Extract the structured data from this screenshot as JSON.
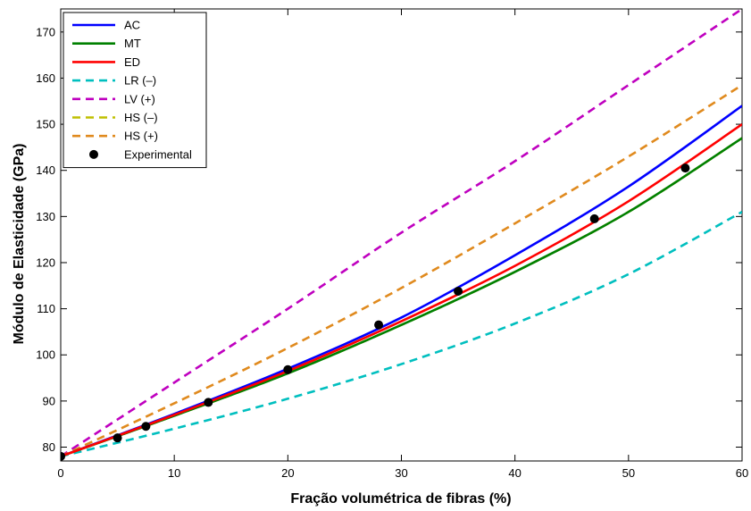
{
  "chart_data": {
    "type": "line",
    "title": "",
    "xlabel": "Fração volumétrica de fibras (%)",
    "ylabel": "Módulo de Elasticidade (GPa)",
    "xlim": [
      0,
      60
    ],
    "ylim": [
      77,
      175
    ],
    "xticks": [
      0,
      10,
      20,
      30,
      40,
      50,
      60
    ],
    "yticks": [
      80,
      90,
      100,
      110,
      120,
      130,
      140,
      150,
      160,
      170
    ],
    "grid": false,
    "legend_position": "top-left",
    "x": [
      0,
      10,
      20,
      30,
      40,
      50,
      60
    ],
    "series": [
      {
        "name": "AC",
        "color": "#0000ff",
        "style": "solid",
        "values": [
          78,
          87.2,
          97.0,
          108.1,
          121.6,
          136.5,
          154.0
        ]
      },
      {
        "name": "MT",
        "color": "#008000",
        "style": "solid",
        "values": [
          78,
          86.8,
          96.0,
          106.5,
          118.0,
          131.0,
          147.0
        ]
      },
      {
        "name": "ED",
        "color": "#ff0000",
        "style": "solid",
        "values": [
          78,
          87.0,
          96.5,
          107.3,
          119.3,
          133.3,
          150.0
        ]
      },
      {
        "name": "LR (–)",
        "color": "#00bfbf",
        "style": "dashed",
        "values": [
          78,
          84.0,
          90.5,
          98.0,
          106.8,
          117.5,
          131.0
        ]
      },
      {
        "name": "LV (+)",
        "color": "#bf00bf",
        "style": "dashed",
        "values": [
          78,
          94.0,
          110.0,
          126.5,
          142.0,
          158.5,
          175.0
        ]
      },
      {
        "name": "HS (–)",
        "color": "#bfbf00",
        "style": "dashed",
        "values": [
          78,
          86.8,
          96.0,
          106.5,
          118.0,
          131.0,
          147.0
        ]
      },
      {
        "name": "HS (+)",
        "color": "#e08a1e",
        "style": "dashed",
        "values": [
          78,
          89.5,
          101.5,
          114.5,
          128.5,
          143.0,
          158.5
        ]
      }
    ],
    "experimental": {
      "name": "Experimental",
      "color": "#000000",
      "x": [
        0,
        5,
        7.5,
        13,
        20,
        28,
        35,
        47,
        55
      ],
      "y": [
        78,
        82,
        84.5,
        89.7,
        96.8,
        106.5,
        113.8,
        129.5,
        140.5
      ]
    }
  }
}
